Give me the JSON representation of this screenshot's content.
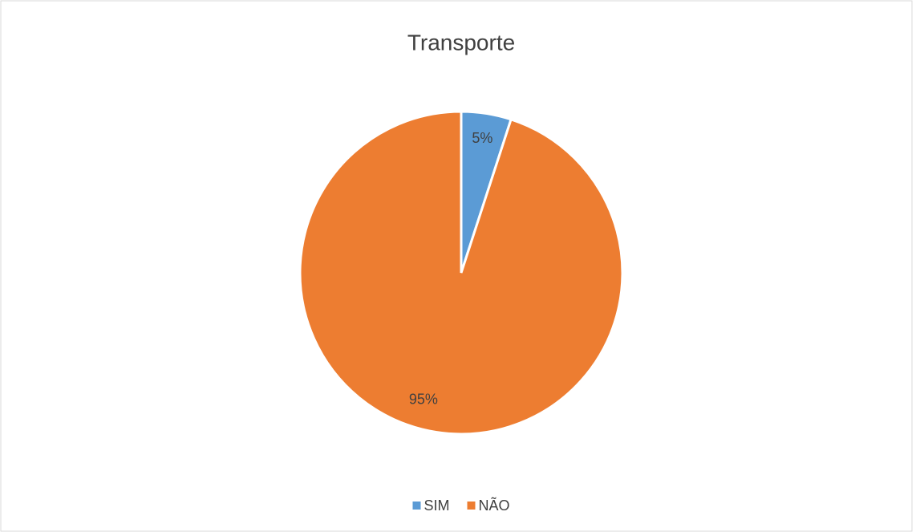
{
  "chart_data": {
    "type": "pie",
    "title": "Transporte",
    "categories": [
      "SIM",
      "NÃO"
    ],
    "values": [
      5,
      95
    ],
    "value_labels": [
      "5%",
      "95%"
    ],
    "colors": [
      "#5b9bd5",
      "#ed7d31"
    ],
    "legend": "bottom"
  }
}
